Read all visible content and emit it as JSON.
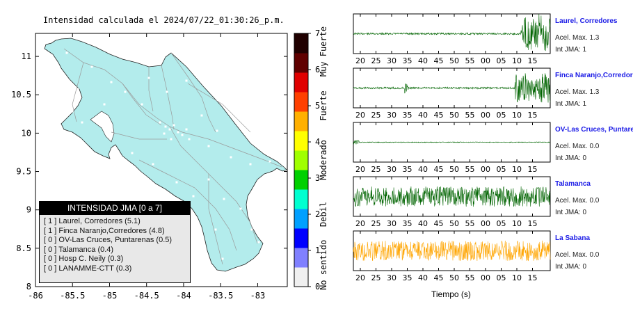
{
  "map": {
    "title": "Intensidad calculada el 2024/07/22_01:30:26_p.m.",
    "x_ticks": [
      "-86",
      "-85.5",
      "-85",
      "-84.5",
      "-84",
      "-83.5",
      "-83"
    ],
    "y_ticks": [
      "11",
      "10.5",
      "10",
      "9.5",
      "9",
      "8.5",
      "8"
    ],
    "colors": {
      "land": "#b3ecec",
      "sea": "#ffffff",
      "roads": "#9a9a9a"
    }
  },
  "colorbar": {
    "ticks": [
      "7",
      "6",
      "5",
      "4",
      "3",
      "2",
      "1",
      "0"
    ],
    "categories": [
      "Muy Fuerte",
      "Fuerte",
      "Moderado",
      "Debil",
      "No sentido"
    ],
    "colors": [
      "#f0f0f0",
      "#8080ff",
      "#0000ff",
      "#00a0ff",
      "#00ffd0",
      "#00d000",
      "#a0ff00",
      "#ffff00",
      "#ffb000",
      "#ff4000",
      "#e00000",
      "#600000",
      "#200000"
    ]
  },
  "legend": {
    "title": "INTENSIDAD JMA [0 a 7]",
    "items": [
      "[ 1 ]  Laurel, Corredores (5.1)",
      "[ 1 ]  Finca Naranjo,Corredores (4.8)",
      "[ 0 ]  OV-Las Cruces, Puntarenas (0.5)",
      "[ 0 ]  Talamanca (0.4)",
      "[ 0 ]  Hosp C. Neily (0.3)",
      "[ 0 ]  LANAMME-CTT (0.3)"
    ]
  },
  "waveforms": {
    "x_ticks": [
      "20",
      "25",
      "30",
      "35",
      "40",
      "45",
      "50",
      "55",
      "00",
      "05",
      "10",
      "15"
    ],
    "x_label": "Tiempo (s)",
    "stations": [
      {
        "name": "Laurel, Corredores",
        "accel": "Acel. Max. 1.3",
        "jma": "Int JMA: 1",
        "color": "#006400"
      },
      {
        "name": "Finca Naranjo,Corredores",
        "accel": "Acel. Max. 1.3",
        "jma": "Int JMA: 1",
        "color": "#006400"
      },
      {
        "name": "OV-Las Cruces, Puntarenas",
        "accel": "Acel. Max. 0.0",
        "jma": "Int JMA: 0",
        "color": "#006400"
      },
      {
        "name": "Talamanca",
        "accel": "Acel. Max. 0.0",
        "jma": "Int JMA: 0",
        "color": "#006400"
      },
      {
        "name": "La Sabana",
        "accel": "Acel. Max. 0.0",
        "jma": "Int JMA: 0",
        "color": "#ffa500"
      }
    ]
  },
  "chart_data": [
    {
      "type": "map",
      "title": "Intensidad calculada el 2024/07/22_01:30:26_p.m.",
      "xlim": [
        -86,
        -82.6
      ],
      "ylim": [
        8,
        11.3
      ],
      "colorbar": {
        "range": [
          0,
          7
        ],
        "labels": [
          "Muy Fuerte",
          "Fuerte",
          "Moderado",
          "Debil",
          "No sentido"
        ]
      },
      "legend": {
        "title": "INTENSIDAD JMA [0 a 7]",
        "entries": [
          {
            "station": "Laurel, Corredores",
            "jma_class": 1,
            "value": 5.1
          },
          {
            "station": "Finca Naranjo,Corredores",
            "jma_class": 1,
            "value": 4.8
          },
          {
            "station": "OV-Las Cruces, Puntarenas",
            "jma_class": 0,
            "value": 0.5
          },
          {
            "station": "Talamanca",
            "jma_class": 0,
            "value": 0.4
          },
          {
            "station": "Hosp C. Neily",
            "jma_class": 0,
            "value": 0.3
          },
          {
            "station": "LANAMME-CTT",
            "jma_class": 0,
            "value": 0.3
          }
        ]
      }
    },
    {
      "type": "line",
      "xlabel": "Tiempo (s)",
      "series": [
        {
          "name": "Laurel, Corredores",
          "accel_max": 1.3,
          "int_jma": 1
        },
        {
          "name": "Finca Naranjo,Corredores",
          "accel_max": 1.3,
          "int_jma": 1
        },
        {
          "name": "OV-Las Cruces, Puntarenas",
          "accel_max": 0.0,
          "int_jma": 0
        },
        {
          "name": "Talamanca",
          "accel_max": 0.0,
          "int_jma": 0
        },
        {
          "name": "La Sabana",
          "accel_max": 0.0,
          "int_jma": 0
        }
      ]
    }
  ]
}
